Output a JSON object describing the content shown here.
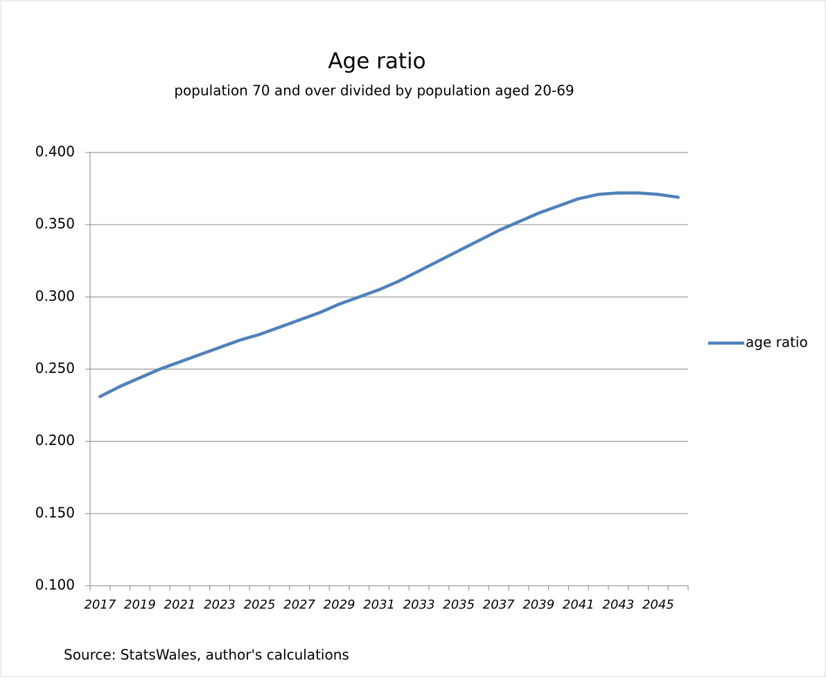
{
  "chart_data": {
    "type": "line",
    "title": "Age ratio",
    "subtitle": "population 70 and over divided by population aged 20-69",
    "source": "Source: StatsWales, author's calculations",
    "categories": [
      "2017",
      null,
      "2019",
      null,
      "2021",
      null,
      "2023",
      null,
      "2025",
      null,
      "2027",
      null,
      "2029",
      null,
      "2031",
      null,
      "2033",
      null,
      "2035",
      null,
      "2037",
      null,
      "2039",
      null,
      "2041",
      null,
      "2043",
      null,
      "2045",
      null
    ],
    "series": [
      {
        "name": "age ratio",
        "color": "#4f81bd",
        "values": [
          0.231,
          0.238,
          0.244,
          0.25,
          0.255,
          0.26,
          0.265,
          0.27,
          0.274,
          0.279,
          0.284,
          0.289,
          0.295,
          0.3,
          0.305,
          0.311,
          0.318,
          0.325,
          0.332,
          0.339,
          0.346,
          0.352,
          0.358,
          0.363,
          0.368,
          0.371,
          0.372,
          0.372,
          0.371,
          0.369
        ]
      }
    ],
    "ylim": [
      0.1,
      0.4
    ],
    "yticks": [
      {
        "value": 0.1,
        "label": "0.100"
      },
      {
        "value": 0.15,
        "label": "0.150"
      },
      {
        "value": 0.2,
        "label": "0.200"
      },
      {
        "value": 0.25,
        "label": "0.250"
      },
      {
        "value": 0.3,
        "label": "0.300"
      },
      {
        "value": 0.35,
        "label": "0.350"
      },
      {
        "value": 0.4,
        "label": "0.400"
      }
    ],
    "grid": true,
    "legend": "right"
  }
}
